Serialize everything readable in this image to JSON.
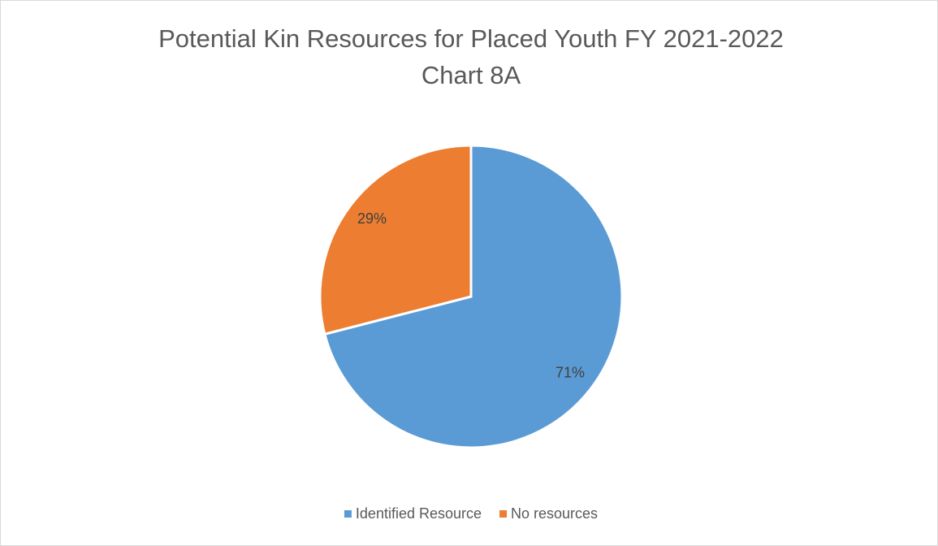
{
  "chart_data": {
    "type": "pie",
    "title": "Potential Kin Resources for Placed Youth FY 2021-2022",
    "subtitle": "Chart 8A",
    "categories": [
      "Identified Resource",
      "No resources"
    ],
    "values": [
      71,
      29
    ],
    "value_labels": [
      "71%",
      "29%"
    ],
    "colors": [
      "#5b9bd5",
      "#ed7d31"
    ],
    "legend": "bottom"
  }
}
